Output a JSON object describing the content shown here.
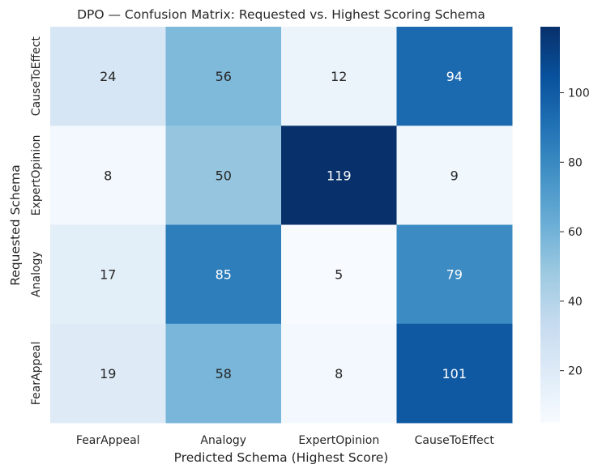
{
  "chart_data": {
    "type": "heatmap",
    "title": "DPO — Confusion Matrix: Requested vs. Highest Scoring Schema",
    "xlabel": "Predicted Schema (Highest Score)",
    "ylabel": "Requested Schema",
    "x_categories": [
      "FearAppeal",
      "Analogy",
      "ExpertOpinion",
      "CauseToEffect"
    ],
    "y_categories": [
      "CauseToEffect",
      "ExpertOpinion",
      "Analogy",
      "FearAppeal"
    ],
    "values": [
      [
        24,
        56,
        12,
        94
      ],
      [
        8,
        50,
        119,
        9
      ],
      [
        17,
        85,
        5,
        79
      ],
      [
        19,
        58,
        8,
        101
      ]
    ],
    "colorbar": {
      "colormap": "Blues",
      "vmin": 5,
      "vmax": 119,
      "ticks": [
        20,
        40,
        60,
        80,
        100
      ]
    }
  }
}
